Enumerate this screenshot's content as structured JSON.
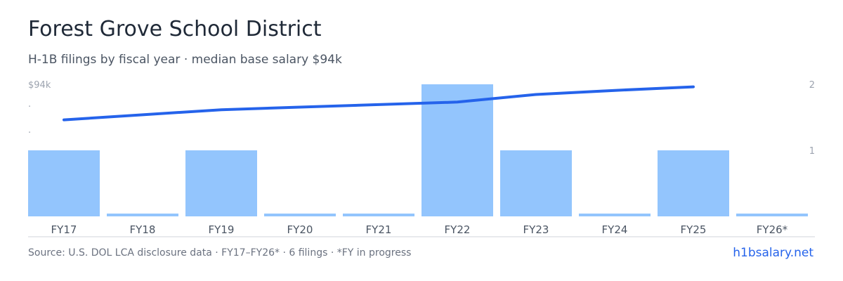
{
  "header": {
    "title": "Forest Grove School District",
    "subtitle": "H-1B filings by fiscal year · median base salary $94k"
  },
  "footer": {
    "source": "Source: U.S. DOL LCA disclosure data · FY17–FY26* · 6 filings · *FY in progress",
    "site": "h1bsalary.net"
  },
  "colors": {
    "bar": "#93c5fd",
    "line": "#2563eb",
    "baseline": "#d1d5db"
  },
  "chart_data": {
    "type": "bar",
    "categories": [
      "FY17",
      "FY18",
      "FY19",
      "FY20",
      "FY21",
      "FY22",
      "FY23",
      "FY24",
      "FY25",
      "FY26*"
    ],
    "series": [
      {
        "values": [
          1,
          0,
          1,
          0,
          0,
          2,
          1,
          0,
          1,
          0
        ]
      },
      {
        "values": [
          89,
          90,
          91,
          91.5,
          92,
          92.5,
          94,
          94.8,
          95.5,
          null
        ]
      }
    ],
    "left_axis_label": "$94k",
    "right_ticks": [
      "2",
      "1"
    ],
    "right_ylim": [
      0,
      2
    ],
    "salary_ylim": [
      70,
      96
    ]
  }
}
